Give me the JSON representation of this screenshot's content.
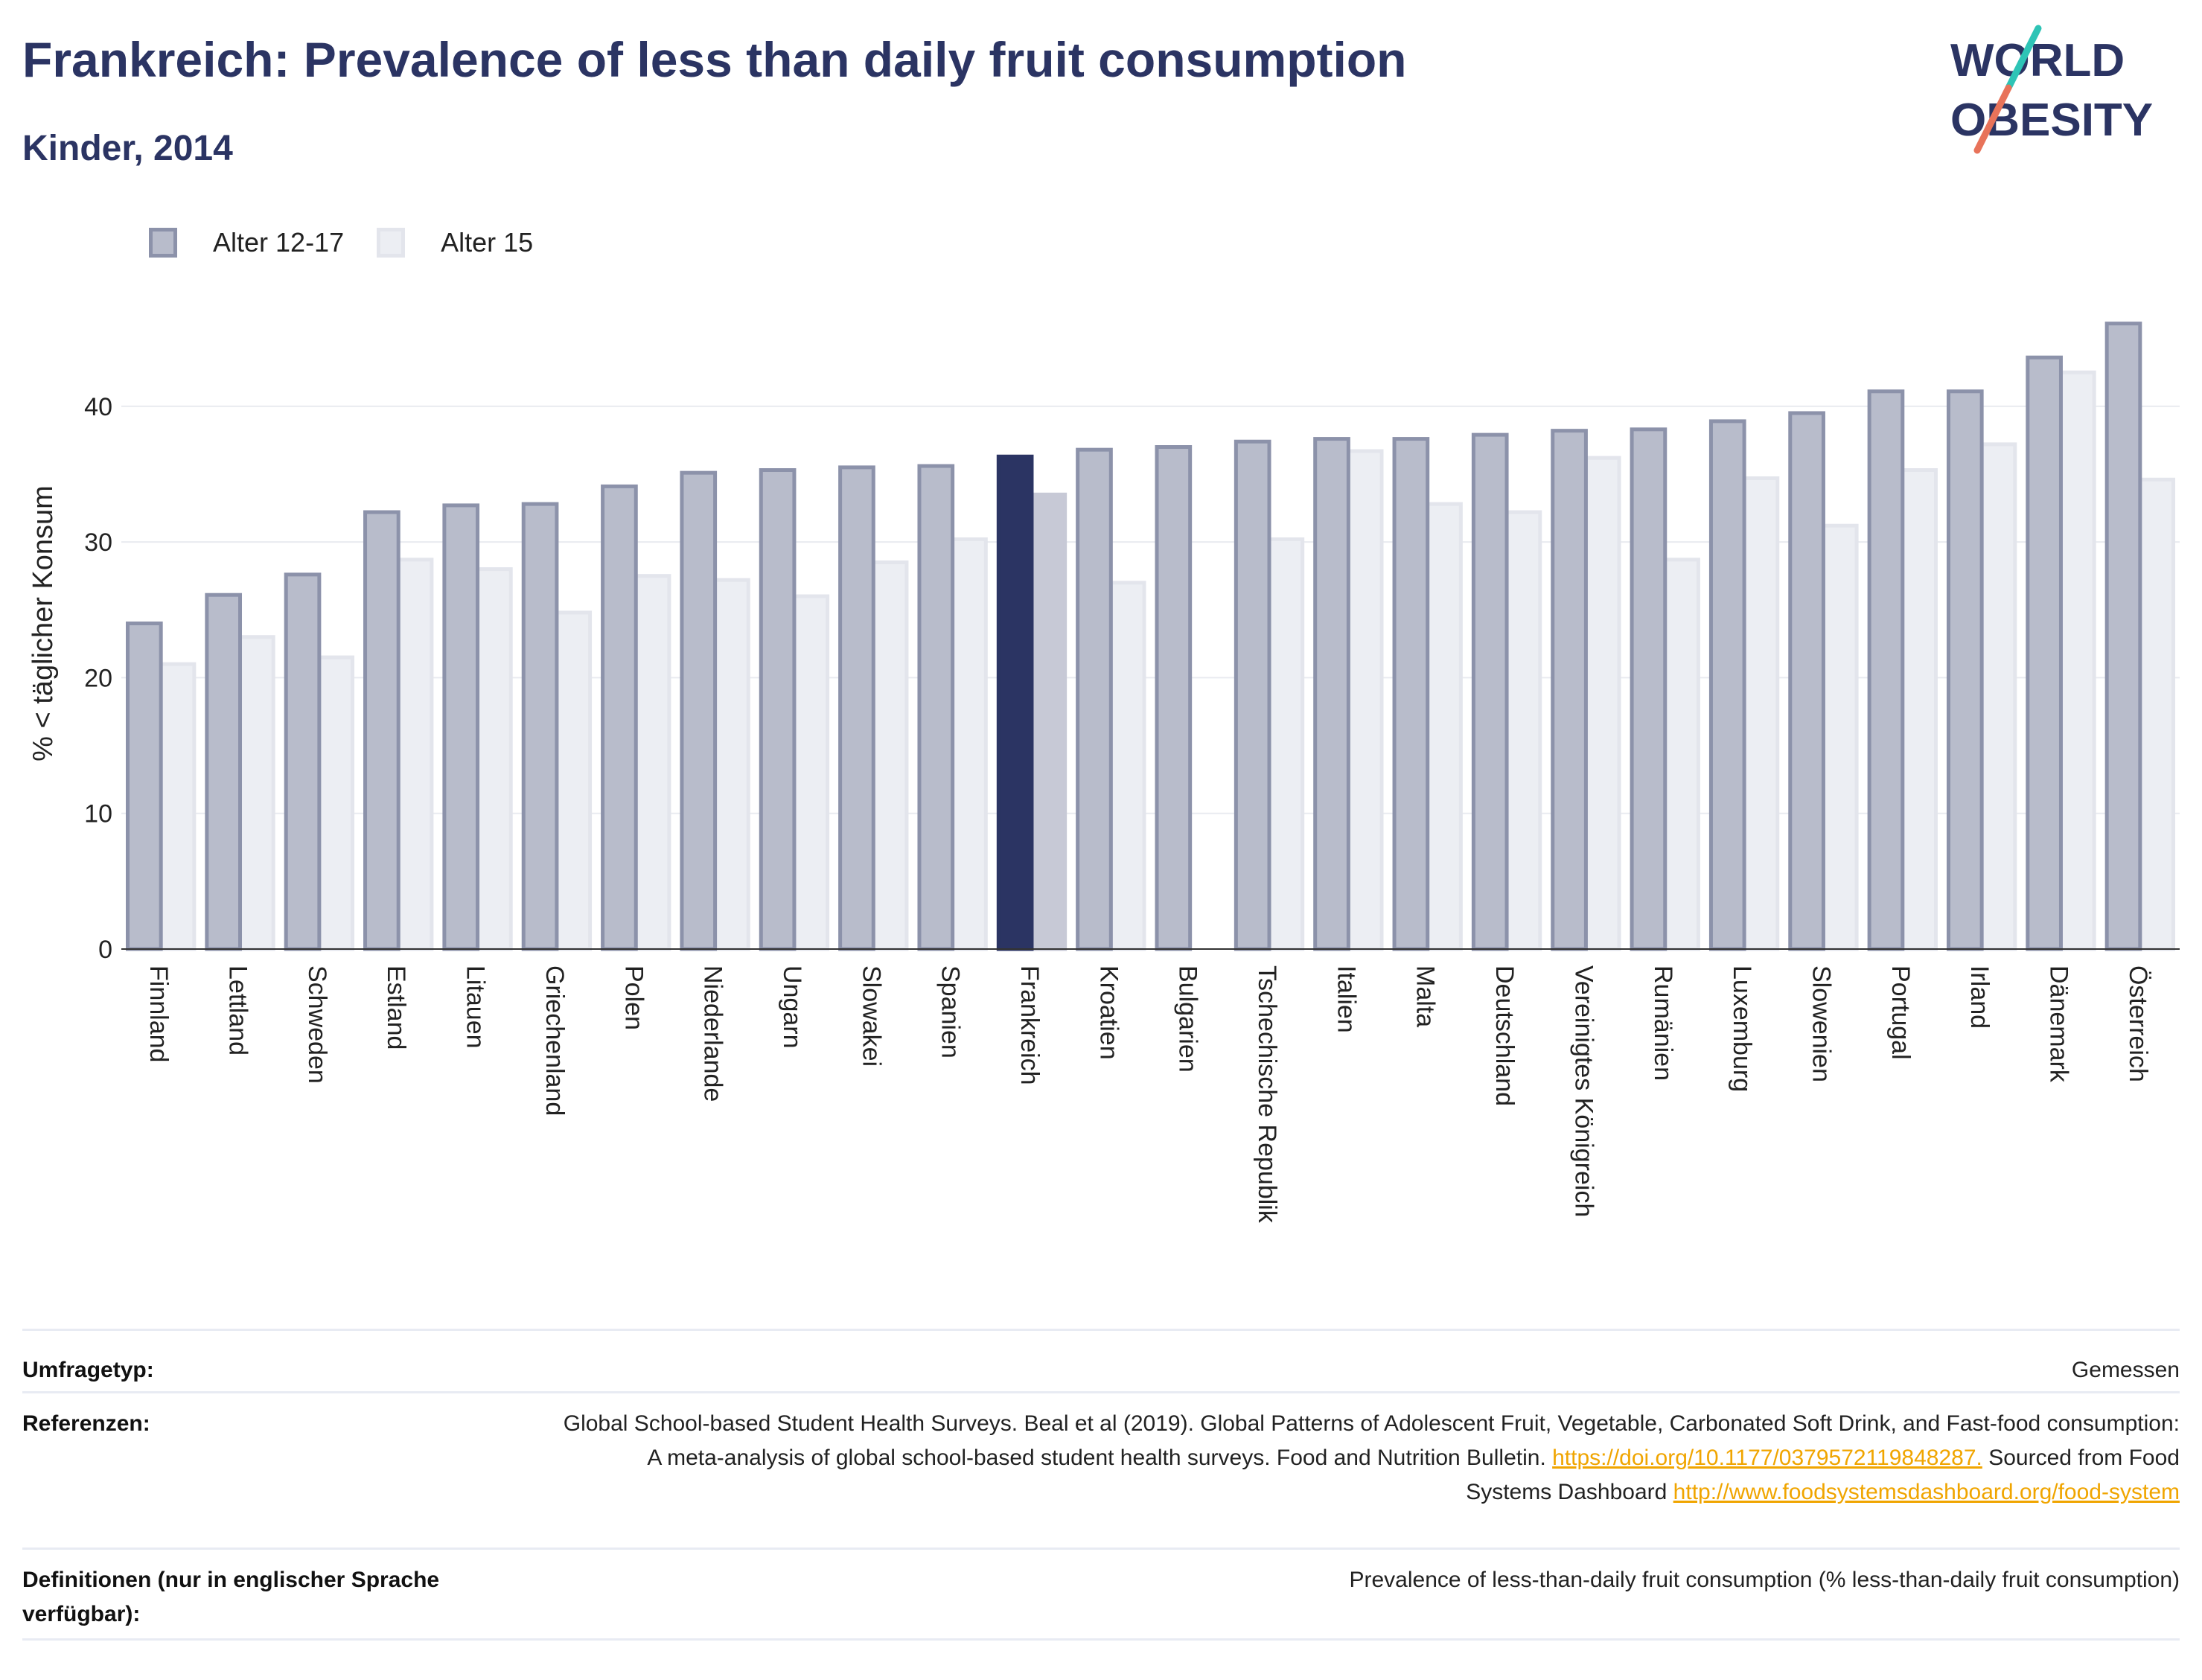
{
  "header": {
    "title": "Frankreich: Prevalence of less than daily fruit consumption",
    "subtitle": "Kinder, 2014",
    "logo_line1": "WORLD",
    "logo_line2": "OBESITY"
  },
  "colors": {
    "series1_fill": "#b8bccb",
    "series1_stroke": "#8c92aa",
    "series2_fill": "#eceef3",
    "series2_stroke": "#e3e5ec",
    "highlight1": "#2b3463",
    "highlight2": "#c7c9d6",
    "logo_slash_teal": "#2ec4b6",
    "logo_slash_coral": "#e8735a"
  },
  "meta": {
    "survey_key": "Umfragetyp:",
    "survey_value": "Gemessen",
    "references_key": "Referenzen:",
    "ref_text1": "Global School-based Student Health Surveys. Beal et al (2019). Global Patterns of Adolescent Fruit, Vegetable, Carbonated Soft Drink, and Fast-food consumption: A meta-analysis of global school-based student health surveys. Food and Nutrition Bulletin.",
    "ref_link1": "https://doi.org/10.1177/0379572119848287.",
    "ref_text2": "Sourced from Food Systems Dashboard",
    "ref_link2": "http://www.foodsystemsdashboard.org/food-system",
    "definitions_key": "Definitionen (nur in englischer Sprache verfügbar):",
    "definitions_value": "Prevalence of less-than-daily fruit consumption (% less-than-daily fruit consumption)"
  },
  "chart_data": {
    "type": "bar",
    "ylabel": "% < täglicher Konsum",
    "xlabel": "",
    "ylim": [
      0,
      48
    ],
    "yticks": [
      0,
      10,
      20,
      30,
      40
    ],
    "grid": true,
    "legend_position": "top-left",
    "highlight_category": "Frankreich",
    "categories": [
      "Finnland",
      "Lettland",
      "Schweden",
      "Estland",
      "Litauen",
      "Griechenland",
      "Polen",
      "Niederlande",
      "Ungarn",
      "Slowakei",
      "Spanien",
      "Frankreich",
      "Kroatien",
      "Bulgarien",
      "Tschechische Republik",
      "Italien",
      "Malta",
      "Deutschland",
      "Vereinigtes Königreich",
      "Rumänien",
      "Luxemburg",
      "Slowenien",
      "Portugal",
      "Irland",
      "Dänemark",
      "Österreich"
    ],
    "series": [
      {
        "name": "Alter 12-17",
        "values": [
          24.0,
          26.1,
          27.6,
          32.2,
          32.7,
          32.8,
          34.1,
          35.1,
          35.3,
          35.5,
          35.6,
          36.3,
          36.8,
          37.0,
          37.4,
          37.6,
          37.6,
          37.9,
          38.2,
          38.3,
          38.9,
          39.5,
          41.1,
          41.1,
          43.6,
          46.1
        ]
      },
      {
        "name": "Alter 15",
        "values": [
          21.0,
          23.0,
          21.5,
          28.7,
          28.0,
          24.8,
          27.5,
          27.2,
          26.0,
          28.5,
          30.2,
          33.5,
          27.0,
          null,
          30.2,
          36.7,
          32.8,
          32.2,
          36.2,
          28.7,
          34.7,
          31.2,
          35.3,
          37.2,
          42.5,
          34.6
        ]
      }
    ]
  }
}
